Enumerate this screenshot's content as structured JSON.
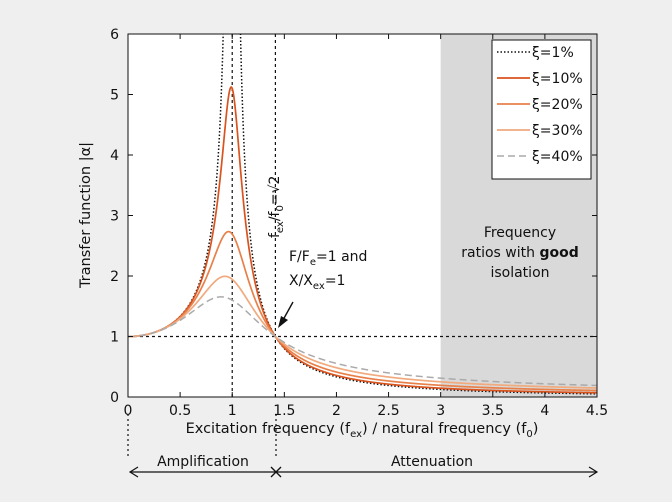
{
  "chart_data": {
    "type": "line",
    "xlabel_main": "Excitation frequency (f",
    "xlabel_sub1": "ex",
    "xlabel_mid": ") / natural frequency (f",
    "xlabel_sub2": "0",
    "xlabel_end": ")",
    "ylabel": "Transfer function  |α|",
    "xlim": [
      0,
      4.5
    ],
    "ylim": [
      0,
      6
    ],
    "xticks": [
      0,
      0.5,
      1,
      1.5,
      2,
      2.5,
      3,
      3.5,
      4,
      4.5
    ],
    "xtick_labels": [
      "0",
      "0.5",
      "1",
      "1.5",
      "2",
      "2.5",
      "3",
      "3.5",
      "4",
      "4.5"
    ],
    "yticks": [
      0,
      1,
      2,
      3,
      4,
      5,
      6
    ],
    "ytick_labels": [
      "0",
      "1",
      "2",
      "3",
      "4",
      "5",
      "6"
    ],
    "grid": false,
    "legend_position": "top-right",
    "series": [
      {
        "name": "ξ=1%",
        "damping": 0.01,
        "color": "#111111",
        "style": "dotted"
      },
      {
        "name": "ξ=10%",
        "damping": 0.1,
        "color": "#d9531e",
        "style": "solid"
      },
      {
        "name": "ξ=20%",
        "damping": 0.2,
        "color": "#e8804a",
        "style": "solid"
      },
      {
        "name": "ξ=30%",
        "damping": 0.3,
        "color": "#f0aa7e",
        "style": "solid"
      },
      {
        "name": "ξ=40%",
        "damping": 0.4,
        "color": "#aaaaaa",
        "style": "dashed"
      }
    ],
    "shaded_region": {
      "x_start": 3,
      "x_end": 4.5,
      "color": "#d9d9d9"
    },
    "reference_lines": {
      "y": 1,
      "x": [
        1,
        1.4142
      ]
    },
    "annotations": {
      "sqrt2_label_a": "f",
      "sqrt2_label_sub1": "ex",
      "sqrt2_label_b": "/f",
      "sqrt2_label_sub2": "0",
      "sqrt2_label_c": "=√2",
      "force_line1_a": "F/F",
      "force_line1_sub": "e",
      "force_line1_b": "=1 and",
      "force_line2_a": "X/X",
      "force_line2_sub": "ex",
      "force_line2_b": "=1",
      "region_line1": "Frequency",
      "region_line2_a": "ratios with ",
      "region_line2_bold": "good",
      "region_line3": "isolation"
    },
    "zones": {
      "amplification": "Amplification",
      "attenuation": "Attenuation"
    }
  }
}
